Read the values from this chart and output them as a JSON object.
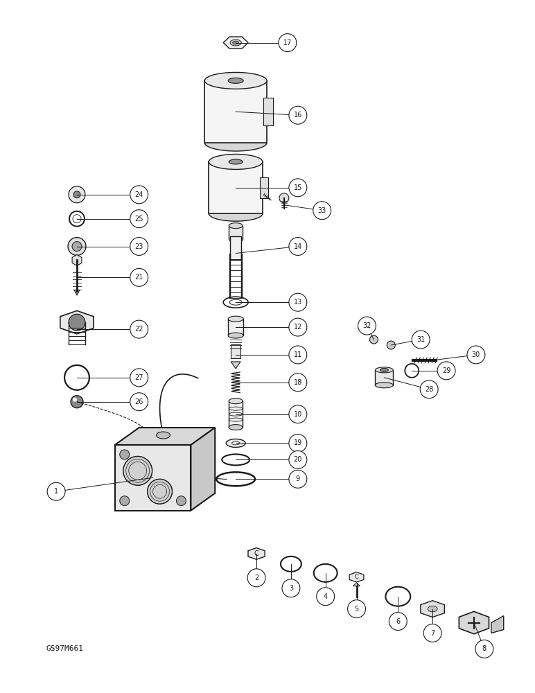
{
  "bg_color": "#ffffff",
  "line_color": "#1a1a1a",
  "watermark": "GS97M661",
  "fig_w": 7.72,
  "fig_h": 10.0,
  "dpi": 100
}
